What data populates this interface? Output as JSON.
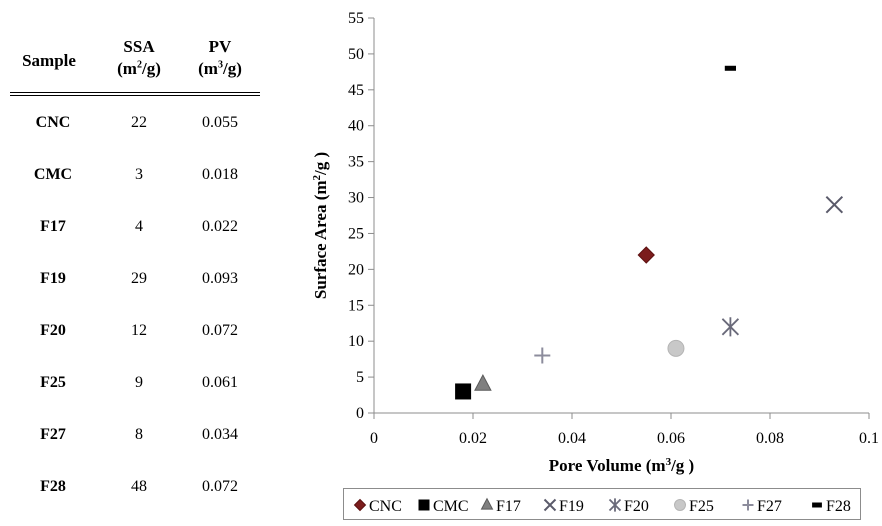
{
  "table": {
    "headers": {
      "sample": "Sample",
      "ssa": "SSA",
      "ssa_unit_pre": "(m",
      "ssa_unit_sup": "2",
      "ssa_unit_post": "/g)",
      "pv": "PV",
      "pv_unit_pre": "(m",
      "pv_unit_sup": "3",
      "pv_unit_post": "/g)"
    },
    "rows": [
      {
        "sample": "CNC",
        "ssa": "22",
        "pv": "0.055"
      },
      {
        "sample": "CMC",
        "ssa": "3",
        "pv": "0.018"
      },
      {
        "sample": "F17",
        "ssa": "4",
        "pv": "0.022"
      },
      {
        "sample": "F19",
        "ssa": "29",
        "pv": "0.093"
      },
      {
        "sample": "F20",
        "ssa": "12",
        "pv": "0.072"
      },
      {
        "sample": "F25",
        "ssa": "9",
        "pv": "0.061"
      },
      {
        "sample": "F27",
        "ssa": "8",
        "pv": "0.034"
      },
      {
        "sample": "F28",
        "ssa": "48",
        "pv": "0.072"
      }
    ]
  },
  "chart_data": {
    "type": "scatter",
    "title": "",
    "xlabel": "Pore Volume (m3/g )",
    "xlabel_parts": {
      "pre": "Pore Volume (m",
      "sup": "3",
      "post": "/g )"
    },
    "ylabel": "Surface Area (m2/g )",
    "ylabel_parts": {
      "pre": "Surface Area (m",
      "sup": "2",
      "post": "/g )"
    },
    "xlim": [
      0,
      0.1
    ],
    "ylim": [
      0,
      55
    ],
    "xticks": [
      "0",
      "0.02",
      "0.04",
      "0.06",
      "0.08",
      "0.1"
    ],
    "xtick_values": [
      0,
      0.02,
      0.04,
      0.06,
      0.08,
      0.1
    ],
    "yticks": [
      "0",
      "5",
      "10",
      "15",
      "20",
      "25",
      "30",
      "35",
      "40",
      "45",
      "50",
      "55"
    ],
    "ytick_values": [
      0,
      5,
      10,
      15,
      20,
      25,
      30,
      35,
      40,
      45,
      50,
      55
    ],
    "grid": false,
    "legend_position": "bottom",
    "series": [
      {
        "name": "CNC",
        "x": 0.055,
        "y": 22,
        "marker": "diamond",
        "color": "#7b1c1c"
      },
      {
        "name": "CMC",
        "x": 0.018,
        "y": 3,
        "marker": "square",
        "color": "#000000"
      },
      {
        "name": "F17",
        "x": 0.022,
        "y": 4,
        "marker": "triangle",
        "color": "#7f7f7f"
      },
      {
        "name": "F19",
        "x": 0.093,
        "y": 29,
        "marker": "x",
        "color": "#5a5a6a"
      },
      {
        "name": "F20",
        "x": 0.072,
        "y": 12,
        "marker": "star",
        "color": "#6a6a7a"
      },
      {
        "name": "F25",
        "x": 0.061,
        "y": 9,
        "marker": "circle",
        "color": "#c8c8c8"
      },
      {
        "name": "F27",
        "x": 0.034,
        "y": 8,
        "marker": "plus",
        "color": "#8c8c9c"
      },
      {
        "name": "F28",
        "x": 0.072,
        "y": 48,
        "marker": "dash",
        "color": "#000000"
      }
    ]
  }
}
